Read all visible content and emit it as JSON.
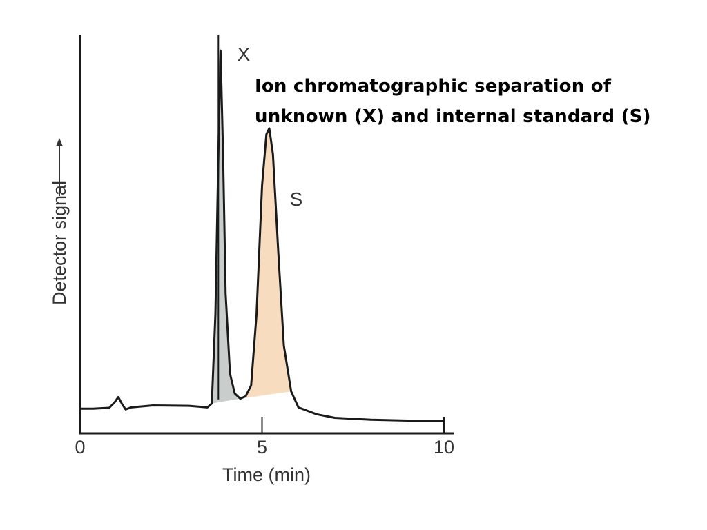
{
  "chart_data": {
    "type": "line",
    "title_lines": [
      "Ion chromatographic separation of",
      "unknown (X) and internal standard (S)"
    ],
    "xlabel": "Time (min)",
    "ylabel": "Detector signal",
    "xlim": [
      0,
      10
    ],
    "ylim": [
      0,
      100
    ],
    "x_ticks": [
      0,
      5,
      10
    ],
    "x_tick_labels": [
      "0",
      "5",
      "10"
    ],
    "grid": false,
    "series": [
      {
        "points": [
          [
            0.0,
            6.2
          ],
          [
            0.35,
            6.2
          ],
          [
            0.8,
            6.4
          ],
          [
            0.95,
            7.8
          ],
          [
            1.05,
            9.1
          ],
          [
            1.15,
            7.4
          ],
          [
            1.25,
            6.0
          ],
          [
            1.4,
            6.5
          ],
          [
            2.0,
            7.0
          ],
          [
            3.0,
            6.9
          ],
          [
            3.5,
            6.5
          ],
          [
            3.62,
            7.5
          ],
          [
            3.72,
            30.0
          ],
          [
            3.8,
            70.0
          ],
          [
            3.86,
            96.0
          ],
          [
            3.93,
            70.0
          ],
          [
            4.0,
            35.0
          ],
          [
            4.12,
            15.0
          ],
          [
            4.25,
            10.0
          ],
          [
            4.4,
            8.7
          ],
          [
            4.55,
            9.3
          ],
          [
            4.7,
            12.0
          ],
          [
            4.85,
            30.0
          ],
          [
            5.0,
            62.0
          ],
          [
            5.12,
            75.0
          ],
          [
            5.2,
            76.5
          ],
          [
            5.3,
            70.0
          ],
          [
            5.45,
            45.0
          ],
          [
            5.6,
            22.0
          ],
          [
            5.8,
            10.5
          ],
          [
            6.0,
            6.5
          ],
          [
            6.5,
            4.8
          ],
          [
            7.0,
            3.9
          ],
          [
            8.0,
            3.4
          ],
          [
            9.0,
            3.2
          ],
          [
            10.0,
            3.2
          ]
        ]
      }
    ],
    "peaks": [
      {
        "label": "X",
        "fill": "#c9cecd"
      },
      {
        "label": "S",
        "fill": "#f7dcc0"
      }
    ],
    "vertical_markers": [
      3.8,
      5.0,
      10.0
    ],
    "colors": {
      "line": "#1a1a1a",
      "axis": "#1a1a1a",
      "text": "#333333"
    }
  }
}
